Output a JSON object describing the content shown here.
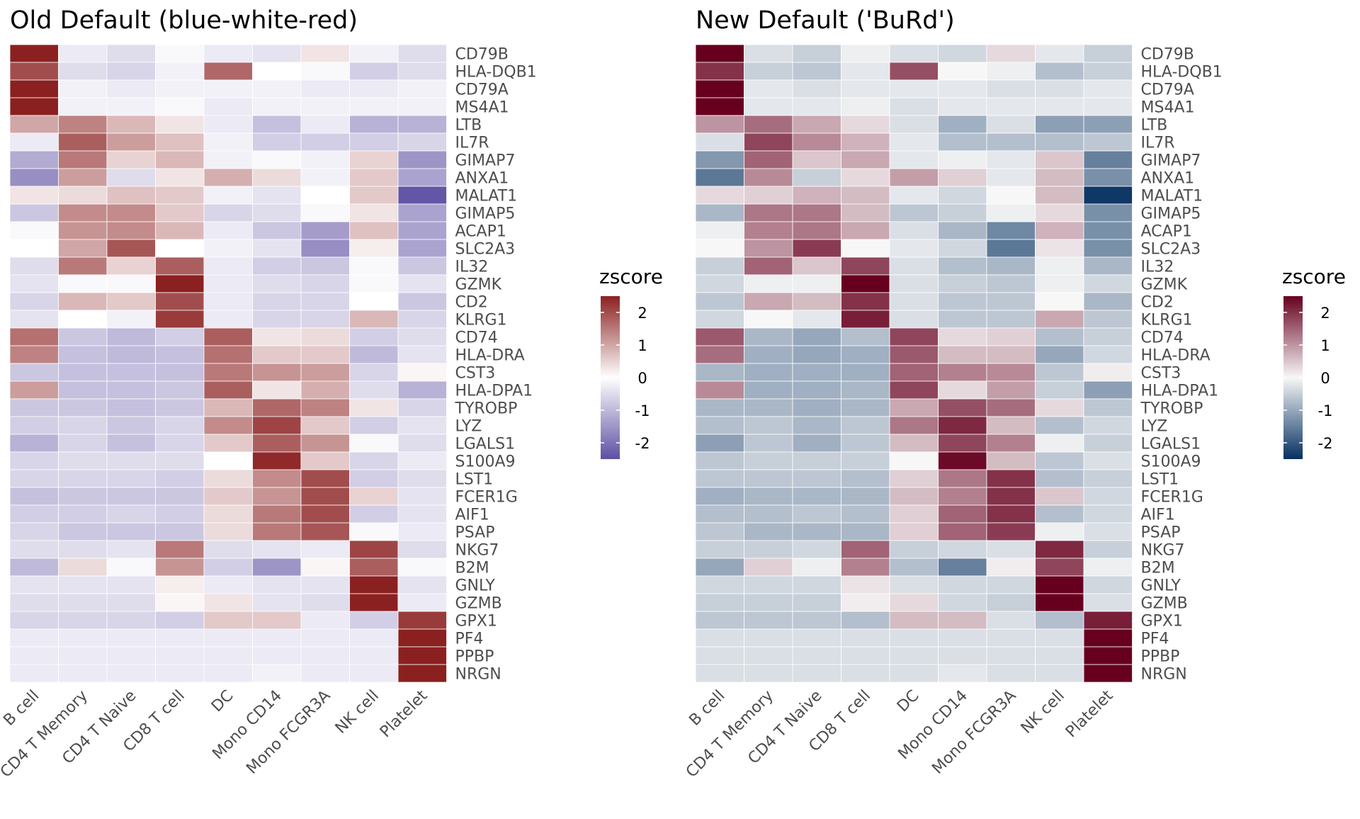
{
  "chart_data": [
    {
      "type": "heatmap",
      "title": "Old Default (blue-white-red)",
      "palette": {
        "low": "#5e4fa2",
        "mid": "#ffffff",
        "high": "#8b2020"
      },
      "legend": {
        "title": "zscore",
        "ticks": [
          2,
          1,
          0,
          -1,
          -2
        ],
        "placement": "right"
      }
    },
    {
      "type": "heatmap",
      "title": "New Default ('BuRd')",
      "palette": {
        "low": "#053061",
        "mid": "#f7f7f7",
        "high": "#67001f"
      },
      "legend": {
        "title": "zscore",
        "ticks": [
          2,
          1,
          0,
          -1,
          -2
        ],
        "placement": "right"
      }
    }
  ],
  "shared": {
    "x_categories": [
      "B cell",
      "CD4 T Memory",
      "CD4 T Naive",
      "CD8 T cell",
      "DC",
      "Mono CD14",
      "Mono FCGR3A",
      "NK cell",
      "Platelet"
    ],
    "y_categories": [
      "CD79B",
      "HLA-DQB1",
      "CD79A",
      "MS4A1",
      "LTB",
      "IL7R",
      "GIMAP7",
      "ANXA1",
      "MALAT1",
      "GIMAP5",
      "ACAP1",
      "SLC2A3",
      "IL32",
      "GZMK",
      "CD2",
      "KLRG1",
      "CD74",
      "HLA-DRA",
      "CST3",
      "HLA-DPA1",
      "TYROBP",
      "LYZ",
      "LGALS1",
      "S100A9",
      "LST1",
      "FCER1G",
      "AIF1",
      "PSAP",
      "NKG7",
      "B2M",
      "GNLY",
      "GZMB",
      "GPX1",
      "PF4",
      "PPBP",
      "NRGN"
    ],
    "zlim": [
      -2.5,
      2.5
    ],
    "values": [
      [
        2.6,
        -0.3,
        -0.5,
        -0.1,
        -0.3,
        -0.4,
        0.3,
        -0.2,
        -0.5
      ],
      [
        2.0,
        -0.5,
        -0.6,
        -0.2,
        1.7,
        0.0,
        -0.1,
        -0.7,
        -0.5
      ],
      [
        2.7,
        -0.2,
        -0.3,
        -0.2,
        -0.2,
        -0.2,
        -0.3,
        -0.3,
        -0.2
      ],
      [
        2.7,
        -0.2,
        -0.2,
        -0.1,
        -0.3,
        -0.2,
        -0.2,
        -0.2,
        -0.2
      ],
      [
        1.0,
        1.4,
        0.8,
        0.3,
        -0.3,
        -0.9,
        -0.3,
        -1.1,
        -1.1
      ],
      [
        -0.3,
        1.8,
        1.1,
        0.7,
        -0.2,
        -0.7,
        -0.7,
        -0.7,
        -0.6
      ],
      [
        -1.2,
        1.5,
        0.5,
        0.8,
        -0.2,
        -0.1,
        -0.2,
        0.5,
        -1.5
      ],
      [
        -1.6,
        1.1,
        -0.5,
        0.3,
        0.9,
        0.4,
        -0.2,
        0.6,
        -1.3
      ],
      [
        0.3,
        0.4,
        0.7,
        0.6,
        -0.2,
        -0.4,
        0.0,
        0.6,
        -2.4
      ],
      [
        -0.8,
        1.3,
        1.3,
        0.6,
        -0.6,
        -0.5,
        -0.1,
        0.3,
        -1.3
      ],
      [
        -0.1,
        1.2,
        1.3,
        0.8,
        -0.3,
        -0.8,
        -1.4,
        0.7,
        -1.3
      ],
      [
        0.0,
        1.0,
        1.9,
        0.0,
        -0.2,
        -0.4,
        -1.6,
        0.2,
        -1.3
      ],
      [
        -0.5,
        1.5,
        0.5,
        1.8,
        -0.3,
        -0.7,
        -0.8,
        -0.1,
        -0.8
      ],
      [
        -0.4,
        -0.1,
        -0.1,
        2.6,
        -0.3,
        -0.5,
        -0.6,
        -0.1,
        -0.4
      ],
      [
        -0.6,
        0.8,
        0.6,
        2.0,
        -0.3,
        -0.6,
        -0.6,
        0.0,
        -0.8
      ],
      [
        -0.4,
        0.0,
        -0.2,
        2.2,
        -0.3,
        -0.6,
        -0.6,
        0.8,
        -0.6
      ],
      [
        1.6,
        -0.8,
        -1.0,
        -0.7,
        1.8,
        0.3,
        0.4,
        -0.7,
        -0.5
      ],
      [
        1.4,
        -0.9,
        -1.0,
        -0.9,
        1.6,
        0.6,
        0.6,
        -1.0,
        -0.4
      ],
      [
        -0.8,
        -0.9,
        -0.9,
        -0.9,
        1.5,
        1.2,
        1.1,
        -0.6,
        0.1
      ],
      [
        1.1,
        -0.9,
        -0.9,
        -0.8,
        1.8,
        0.3,
        0.9,
        -0.5,
        -1.1
      ],
      [
        -0.8,
        -0.8,
        -0.9,
        -0.8,
        0.8,
        1.7,
        1.4,
        0.3,
        -0.6
      ],
      [
        -0.7,
        -0.6,
        -0.8,
        -0.6,
        1.3,
        2.1,
        0.6,
        -0.7,
        -0.4
      ],
      [
        -1.1,
        -0.6,
        -0.9,
        -0.6,
        0.6,
        1.8,
        1.2,
        -0.1,
        -0.5
      ],
      [
        -0.6,
        -0.5,
        -0.5,
        -0.5,
        0.0,
        2.4,
        0.6,
        -0.6,
        -0.3
      ],
      [
        -0.6,
        -0.6,
        -0.6,
        -0.7,
        0.4,
        1.3,
        2.0,
        -0.7,
        -0.5
      ],
      [
        -0.9,
        -0.8,
        -0.8,
        -0.8,
        0.6,
        1.2,
        2.0,
        0.5,
        -0.4
      ],
      [
        -0.7,
        -0.7,
        -0.6,
        -0.7,
        0.4,
        1.5,
        2.0,
        -0.7,
        -0.4
      ],
      [
        -0.6,
        -0.8,
        -0.8,
        -0.8,
        0.4,
        1.5,
        1.9,
        -0.1,
        -0.3
      ],
      [
        -0.5,
        -0.5,
        -0.4,
        1.5,
        -0.5,
        -0.4,
        -0.3,
        2.1,
        -0.5
      ],
      [
        -1.0,
        0.4,
        -0.1,
        1.2,
        -0.7,
        -1.5,
        0.1,
        1.8,
        -0.1
      ],
      [
        -0.4,
        -0.4,
        -0.4,
        0.2,
        -0.3,
        -0.4,
        -0.4,
        2.6,
        -0.4
      ],
      [
        -0.5,
        -0.5,
        -0.5,
        0.1,
        0.3,
        -0.4,
        -0.5,
        2.6,
        -0.3
      ],
      [
        -0.6,
        -0.6,
        -0.6,
        -0.7,
        0.6,
        0.6,
        -0.3,
        -0.7,
        2.2
      ],
      [
        -0.3,
        -0.3,
        -0.3,
        -0.3,
        -0.3,
        -0.3,
        -0.3,
        -0.3,
        2.6
      ],
      [
        -0.3,
        -0.3,
        -0.3,
        -0.3,
        -0.3,
        -0.3,
        -0.3,
        -0.3,
        2.6
      ],
      [
        -0.3,
        -0.3,
        -0.3,
        -0.3,
        -0.3,
        -0.2,
        -0.3,
        -0.3,
        2.6
      ]
    ]
  }
}
